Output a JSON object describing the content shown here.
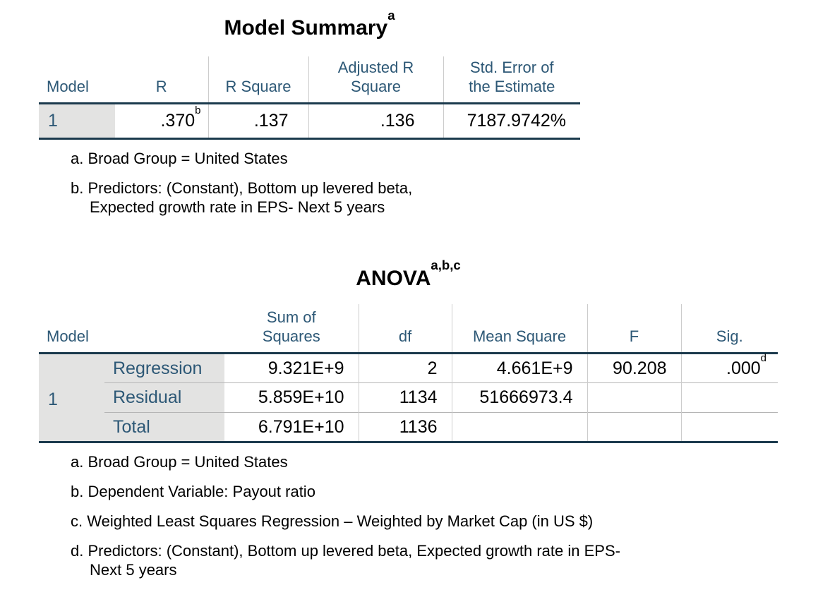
{
  "colors": {
    "header_text": "#2d5876",
    "frame_line": "#1b3a4d",
    "label_background": "#e3e3e2",
    "column_separator": "#cccccc",
    "row_separator": "#b5b5b5",
    "data_text": "#000000"
  },
  "model_summary": {
    "title": "Model Summary",
    "title_sup": "a",
    "header": {
      "model": "Model",
      "r": "R",
      "r_square": "R Square",
      "adj_r_square": "Adjusted R\nSquare",
      "std_error": "Std. Error of\nthe Estimate"
    },
    "row": {
      "model": "1",
      "r": ".370",
      "r_sup": "b",
      "r_square": ".137",
      "adj_r_square": ".136",
      "std_error": "7187.9742%"
    },
    "footnotes": [
      "a. Broad Group = United States",
      "b. Predictors: (Constant), Bottom up levered beta,\nExpected growth rate in EPS- Next 5 years"
    ]
  },
  "anova": {
    "title": "ANOVA",
    "title_sup": "a,b,c",
    "header": {
      "model": "Model",
      "sum_sq": "Sum of\nSquares",
      "df": "df",
      "mean_sq": "Mean Square",
      "f": "F",
      "sig": "Sig."
    },
    "rows": [
      {
        "model": "1",
        "label": "Regression",
        "sum_sq": "9.321E+9",
        "df": "2",
        "mean_sq": "4.661E+9",
        "f": "90.208",
        "sig": ".000",
        "sig_sup": "d"
      },
      {
        "label": "Residual",
        "sum_sq": "5.859E+10",
        "df": "1134",
        "mean_sq": "51666973.4",
        "f": "",
        "sig": ""
      },
      {
        "label": "Total",
        "sum_sq": "6.791E+10",
        "df": "1136",
        "mean_sq": "",
        "f": "",
        "sig": ""
      }
    ],
    "footnotes": [
      "a. Broad Group = United States",
      "b. Dependent Variable: Payout ratio",
      "c. Weighted Least Squares Regression – Weighted by Market Cap (in US $)",
      "d. Predictors: (Constant), Bottom up levered beta, Expected growth rate in EPS-\nNext 5 years"
    ]
  }
}
